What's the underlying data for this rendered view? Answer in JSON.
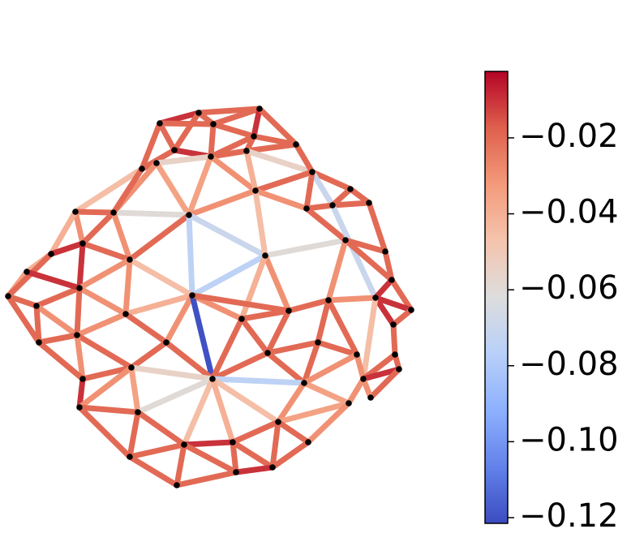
{
  "chart_data": {
    "type": "network",
    "colormap": "coolwarm",
    "xlim": [
      0,
      560
    ],
    "ylim": [
      668,
      0
    ],
    "nodes": {
      "x": [
        197,
        245,
        320,
        263,
        313,
        365,
        215,
        260,
        304,
        175,
        193,
        385,
        315,
        233,
        140,
        93,
        410,
        432,
        455,
        378,
        327,
        426,
        475,
        102,
        63,
        33,
        10,
        160,
        98,
        237,
        483,
        463,
        507,
        45,
        155,
        298,
        356,
        405,
        485,
        95,
        48,
        205,
        330,
        392,
        440,
        487,
        162,
        262,
        102,
        375,
        492,
        448,
        457,
        430,
        98,
        170,
        343,
        227,
        287,
        380,
        160,
        218,
        291,
        336
      ],
      "y": [
        152,
        139,
        134,
        153,
        168,
        178,
        185,
        193,
        186,
        208,
        201,
        212,
        235,
        265,
        262,
        261,
        253,
        233,
        250,
        257,
        315,
        296,
        310,
        300,
        313,
        335,
        365,
        320,
        355,
        364,
        345,
        367,
        382,
        377,
        387,
        393,
        383,
        370,
        400,
        413,
        422,
        422,
        435,
        422,
        437,
        437,
        453,
        467,
        467,
        472,
        455,
        467,
        490,
        497,
        502,
        508,
        520,
        548,
        545,
        545,
        563,
        598,
        582,
        576
      ]
    },
    "edges": [
      [
        0,
        1
      ],
      [
        0,
        3
      ],
      [
        1,
        3
      ],
      [
        1,
        2
      ],
      [
        2,
        3
      ],
      [
        2,
        4
      ],
      [
        3,
        4
      ],
      [
        2,
        5
      ],
      [
        4,
        5
      ],
      [
        0,
        6
      ],
      [
        0,
        9
      ],
      [
        6,
        9
      ],
      [
        6,
        1
      ],
      [
        6,
        7
      ],
      [
        3,
        7
      ],
      [
        7,
        4
      ],
      [
        7,
        8
      ],
      [
        4,
        8
      ],
      [
        8,
        5
      ],
      [
        9,
        10
      ],
      [
        10,
        7
      ],
      [
        8,
        11
      ],
      [
        5,
        11
      ],
      [
        10,
        14
      ],
      [
        10,
        13
      ],
      [
        7,
        13
      ],
      [
        7,
        12
      ],
      [
        8,
        12
      ],
      [
        13,
        12
      ],
      [
        12,
        11
      ],
      [
        11,
        17
      ],
      [
        11,
        16
      ],
      [
        12,
        19
      ],
      [
        19,
        11
      ],
      [
        17,
        18
      ],
      [
        16,
        17
      ],
      [
        16,
        18
      ],
      [
        19,
        16
      ],
      [
        9,
        15
      ],
      [
        14,
        15
      ],
      [
        14,
        13
      ],
      [
        15,
        23
      ],
      [
        14,
        23
      ],
      [
        15,
        24
      ],
      [
        23,
        24
      ],
      [
        24,
        25
      ],
      [
        25,
        26
      ],
      [
        24,
        26
      ],
      [
        14,
        27
      ],
      [
        13,
        27
      ],
      [
        23,
        27
      ],
      [
        23,
        28
      ],
      [
        27,
        28
      ],
      [
        13,
        29
      ],
      [
        13,
        20
      ],
      [
        12,
        20
      ],
      [
        20,
        21
      ],
      [
        21,
        19
      ],
      [
        16,
        31
      ],
      [
        21,
        22
      ],
      [
        18,
        22
      ],
      [
        22,
        30
      ],
      [
        21,
        30
      ],
      [
        30,
        31
      ],
      [
        30,
        32
      ],
      [
        31,
        32
      ],
      [
        20,
        29
      ],
      [
        20,
        36
      ],
      [
        20,
        35
      ],
      [
        29,
        35
      ],
      [
        27,
        29
      ],
      [
        27,
        34
      ],
      [
        28,
        34
      ],
      [
        28,
        33
      ],
      [
        26,
        33
      ],
      [
        25,
        28
      ],
      [
        33,
        39
      ],
      [
        26,
        40
      ],
      [
        33,
        40
      ],
      [
        39,
        40
      ],
      [
        28,
        39
      ],
      [
        34,
        39
      ],
      [
        34,
        29
      ],
      [
        34,
        41
      ],
      [
        29,
        41
      ],
      [
        29,
        47
      ],
      [
        29,
        36
      ],
      [
        35,
        36
      ],
      [
        36,
        37
      ],
      [
        21,
        37
      ],
      [
        37,
        31
      ],
      [
        31,
        38
      ],
      [
        32,
        38
      ],
      [
        38,
        45
      ],
      [
        31,
        51
      ],
      [
        37,
        43
      ],
      [
        37,
        44
      ],
      [
        43,
        44
      ],
      [
        35,
        42
      ],
      [
        36,
        42
      ],
      [
        42,
        43
      ],
      [
        41,
        47
      ],
      [
        35,
        47
      ],
      [
        42,
        47
      ],
      [
        42,
        49
      ],
      [
        43,
        49
      ],
      [
        44,
        51
      ],
      [
        45,
        51
      ],
      [
        45,
        50
      ],
      [
        50,
        51
      ],
      [
        50,
        52
      ],
      [
        51,
        52
      ],
      [
        51,
        53
      ],
      [
        49,
        53
      ],
      [
        44,
        49
      ],
      [
        46,
        41
      ],
      [
        39,
        46
      ],
      [
        39,
        48
      ],
      [
        40,
        48
      ],
      [
        46,
        48
      ],
      [
        46,
        47
      ],
      [
        48,
        54
      ],
      [
        46,
        54
      ],
      [
        46,
        55
      ],
      [
        47,
        55
      ],
      [
        47,
        49
      ],
      [
        47,
        56
      ],
      [
        47,
        57
      ],
      [
        47,
        58
      ],
      [
        49,
        56
      ],
      [
        53,
        56
      ],
      [
        53,
        59
      ],
      [
        56,
        59
      ],
      [
        56,
        63
      ],
      [
        56,
        58
      ],
      [
        58,
        63
      ],
      [
        58,
        62
      ],
      [
        57,
        58
      ],
      [
        57,
        62
      ],
      [
        54,
        55
      ],
      [
        54,
        60
      ],
      [
        55,
        60
      ],
      [
        55,
        57
      ],
      [
        57,
        60
      ],
      [
        60,
        61
      ],
      [
        57,
        61
      ],
      [
        61,
        62
      ],
      [
        62,
        63
      ],
      [
        59,
        63
      ],
      [
        9,
        14
      ]
    ],
    "values": [
      -0.01,
      -0.02,
      -0.02,
      -0.02,
      -0.02,
      -0.01,
      -0.02,
      -0.02,
      -0.02,
      -0.02,
      -0.02,
      -0.02,
      -0.02,
      -0.01,
      -0.02,
      -0.02,
      -0.02,
      -0.02,
      -0.02,
      -0.02,
      -0.055,
      -0.055,
      -0.02,
      -0.03,
      -0.035,
      -0.035,
      -0.03,
      -0.04,
      -0.03,
      -0.02,
      -0.02,
      -0.07,
      -0.03,
      -0.02,
      -0.02,
      -0.02,
      -0.02,
      -0.02,
      -0.045,
      -0.02,
      -0.06,
      -0.03,
      -0.02,
      -0.04,
      -0.01,
      -0.04,
      -0.035,
      -0.02,
      -0.03,
      -0.02,
      -0.02,
      -0.01,
      -0.03,
      -0.075,
      -0.07,
      -0.045,
      -0.06,
      -0.02,
      -0.07,
      -0.02,
      -0.02,
      -0.02,
      -0.02,
      -0.01,
      -0.02,
      -0.01,
      -0.075,
      -0.03,
      -0.04,
      -0.03,
      -0.045,
      -0.03,
      -0.03,
      -0.02,
      -0.02,
      -0.01,
      -0.03,
      -0.02,
      -0.02,
      -0.02,
      -0.02,
      -0.03,
      -0.04,
      -0.02,
      -0.03,
      -0.12,
      -0.02,
      -0.02,
      -0.02,
      -0.03,
      -0.03,
      -0.01,
      -0.02,
      -0.02,
      -0.045,
      -0.02,
      -0.02,
      -0.02,
      -0.02,
      -0.02,
      -0.02,
      -0.02,
      -0.02,
      -0.02,
      -0.02,
      -0.02,
      -0.03,
      -0.02,
      -0.02,
      -0.01,
      -0.02,
      -0.03,
      -0.03,
      -0.035,
      -0.03,
      -0.02,
      -0.02,
      -0.03,
      -0.02,
      -0.02,
      -0.055,
      -0.01,
      -0.03,
      -0.035,
      -0.06,
      -0.075,
      -0.045,
      -0.045,
      -0.04,
      -0.03,
      -0.035,
      -0.03,
      -0.02,
      -0.02,
      -0.02,
      -0.02,
      -0.02,
      -0.01,
      -0.02,
      -0.02,
      -0.02,
      -0.02,
      -0.02,
      -0.02,
      -0.02,
      -0.02,
      -0.02,
      -0.01,
      -0.02,
      -0.02
    ],
    "clim": [
      -0.1215,
      -0.0025
    ],
    "cticks": [
      {
        "value": -0.02,
        "label": "−0.02"
      },
      {
        "value": -0.04,
        "label": "−0.04"
      },
      {
        "value": -0.06,
        "label": "−0.06"
      },
      {
        "value": -0.08,
        "label": "−0.08"
      },
      {
        "value": -0.1,
        "label": "−0.10"
      },
      {
        "value": -0.12,
        "label": "−0.12"
      }
    ]
  }
}
